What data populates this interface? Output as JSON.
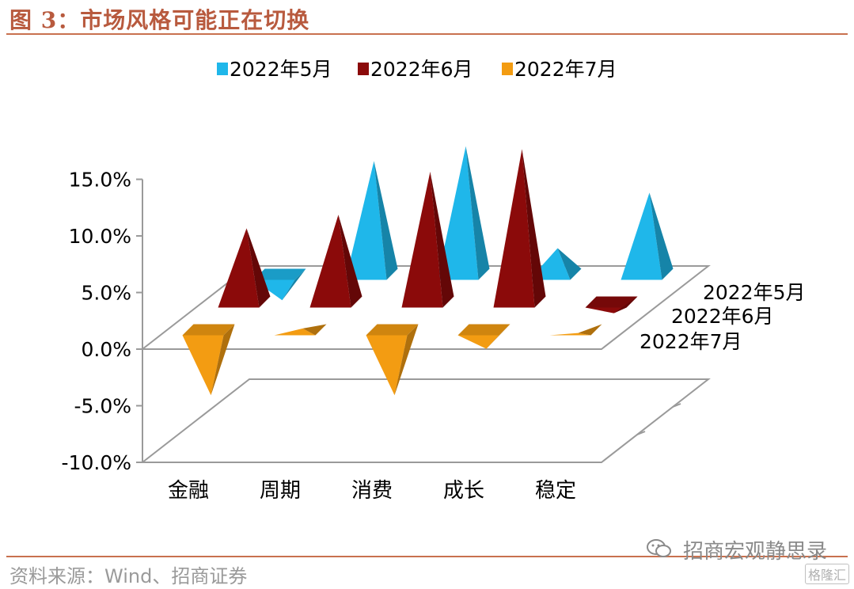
{
  "header": {
    "title": "图 3：市场风格可能正在切换"
  },
  "footer": {
    "source": "资料来源：Wind、招商证券",
    "watermark": "招商宏观静思录",
    "logo_text": "格隆汇"
  },
  "colors": {
    "may": "#1fb7ea",
    "june": "#8b0a0a",
    "july": "#f39c12",
    "accent": "#c8714f"
  },
  "chart_data": {
    "type": "bar",
    "subtype": "3d-pyramid",
    "categories": [
      "金融",
      "周期",
      "消费",
      "成长",
      "稳定"
    ],
    "series": [
      {
        "name": "2022年5月",
        "values": [
          -1.8,
          10.5,
          11.8,
          2.8,
          7.7
        ]
      },
      {
        "name": "2022年6月",
        "values": [
          7.0,
          8.2,
          12.0,
          14.0,
          -0.5
        ]
      },
      {
        "name": "2022年7月",
        "values": [
          -5.3,
          0.6,
          -5.3,
          -1.2,
          0.2
        ]
      }
    ],
    "y_ticks": [
      "15.0%",
      "10.0%",
      "5.0%",
      "0.0%",
      "-5.0%",
      "-10.0%"
    ],
    "ylim": [
      -10,
      15
    ],
    "legend": [
      "2022年5月",
      "2022年6月",
      "2022年7月"
    ],
    "legend_position": "top",
    "depth_labels": [
      "2022年5月",
      "2022年6月",
      "2022年7月"
    ]
  }
}
